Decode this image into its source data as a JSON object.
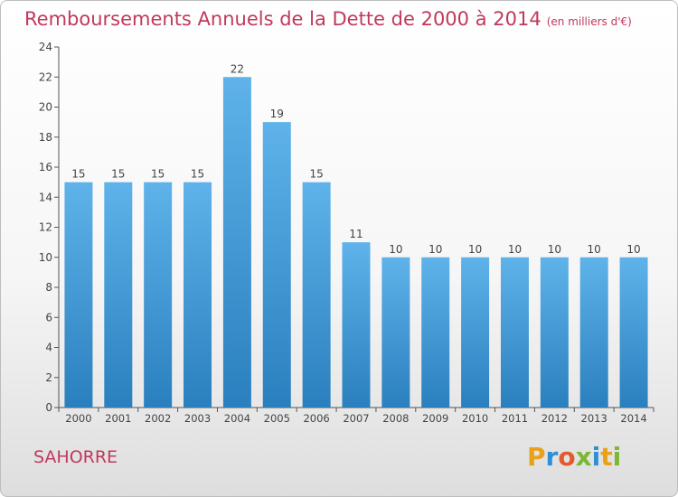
{
  "chart_data": {
    "type": "bar",
    "title": "Remboursements Annuels de la Dette de 2000 à 2014",
    "unit_label": "(en milliers d'€)",
    "xlabel": "",
    "ylabel": "",
    "categories": [
      "2000",
      "2001",
      "2002",
      "2003",
      "2004",
      "2005",
      "2006",
      "2007",
      "2008",
      "2009",
      "2010",
      "2011",
      "2012",
      "2013",
      "2014"
    ],
    "values": [
      15,
      15,
      15,
      15,
      22,
      19,
      15,
      11,
      10,
      10,
      10,
      10,
      10,
      10,
      10
    ],
    "ylim": [
      0,
      24
    ],
    "yticks": [
      0,
      2,
      4,
      6,
      8,
      10,
      12,
      14,
      16,
      18,
      20,
      22,
      24
    ],
    "grid": false,
    "legend": "none",
    "colors": {
      "bar_top": "#5fb3ea",
      "bar_bottom": "#2a7fbe",
      "title": "#c0395c",
      "axis": "#555555"
    }
  },
  "commune": "SAHORRE",
  "logo": {
    "letters": [
      "P",
      "r",
      "o",
      "x",
      "i",
      "t",
      "i"
    ],
    "colors": [
      "#e8a21a",
      "#2d8fd5",
      "#e35a2b",
      "#7ab833",
      "#2d8fd5",
      "#e8a21a",
      "#7ab833"
    ]
  }
}
